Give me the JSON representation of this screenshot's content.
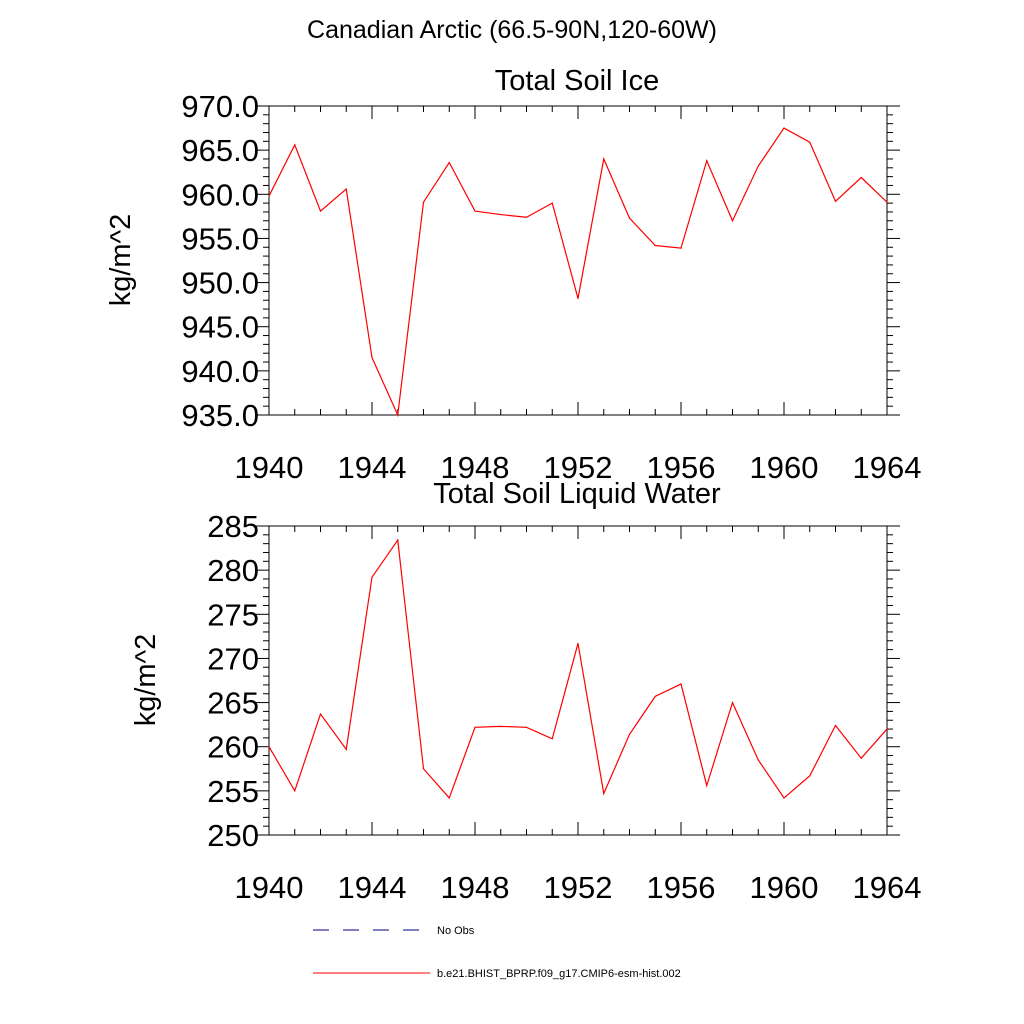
{
  "page_title": "Canadian Arctic (66.5-90N,120-60W)",
  "legend": {
    "entries": [
      {
        "label": "No Obs",
        "color": "#000080",
        "style": "dashed"
      },
      {
        "label": "b.e21.BHIST_BPRP.f09_g17.CMIP6-esm-hist.002",
        "color": "#ff0000",
        "style": "solid"
      }
    ]
  },
  "chart_data": [
    {
      "type": "line",
      "title": "Total Soil Ice",
      "xlabel": "",
      "ylabel": "kg/m^2",
      "xlim": [
        1940,
        1964
      ],
      "ylim": [
        935,
        970
      ],
      "x_ticks": [
        "1940",
        "1944",
        "1948",
        "1952",
        "1956",
        "1960",
        "1964"
      ],
      "y_ticks": [
        "935.0",
        "940.0",
        "945.0",
        "950.0",
        "955.0",
        "960.0",
        "965.0",
        "970.0"
      ],
      "x": [
        1940,
        1941,
        1942,
        1943,
        1944,
        1945,
        1946,
        1947,
        1948,
        1949,
        1950,
        1951,
        1952,
        1953,
        1954,
        1955,
        1956,
        1957,
        1958,
        1959,
        1960,
        1961,
        1962,
        1963,
        1964
      ],
      "series": [
        {
          "color": "#ff0000",
          "values": [
            959.8,
            965.6,
            958.1,
            960.6,
            941.5,
            935.0,
            959.1,
            963.6,
            958.1,
            957.7,
            957.4,
            959.0,
            948.2,
            964.0,
            957.3,
            954.2,
            953.9,
            963.8,
            957.0,
            963.2,
            967.5,
            965.9,
            959.2,
            961.9,
            959.1
          ]
        }
      ]
    },
    {
      "type": "line",
      "title": "Total Soil Liquid Water",
      "xlabel": "",
      "ylabel": "kg/m^2",
      "xlim": [
        1940,
        1964
      ],
      "ylim": [
        250,
        285
      ],
      "x_ticks": [
        "1940",
        "1944",
        "1948",
        "1952",
        "1956",
        "1960",
        "1964"
      ],
      "y_ticks": [
        "250",
        "255",
        "260",
        "265",
        "270",
        "275",
        "280",
        "285"
      ],
      "x": [
        1940,
        1941,
        1942,
        1943,
        1944,
        1945,
        1946,
        1947,
        1948,
        1949,
        1950,
        1951,
        1952,
        1953,
        1954,
        1955,
        1956,
        1957,
        1958,
        1959,
        1960,
        1961,
        1962,
        1963,
        1964
      ],
      "series": [
        {
          "color": "#ff0000",
          "values": [
            260.0,
            255.0,
            263.7,
            259.7,
            279.2,
            283.4,
            257.5,
            254.2,
            262.2,
            262.3,
            262.2,
            260.9,
            271.7,
            254.7,
            261.4,
            265.7,
            267.1,
            255.6,
            265.0,
            258.5,
            254.2,
            256.7,
            262.4,
            258.7,
            262.0
          ]
        }
      ]
    }
  ]
}
